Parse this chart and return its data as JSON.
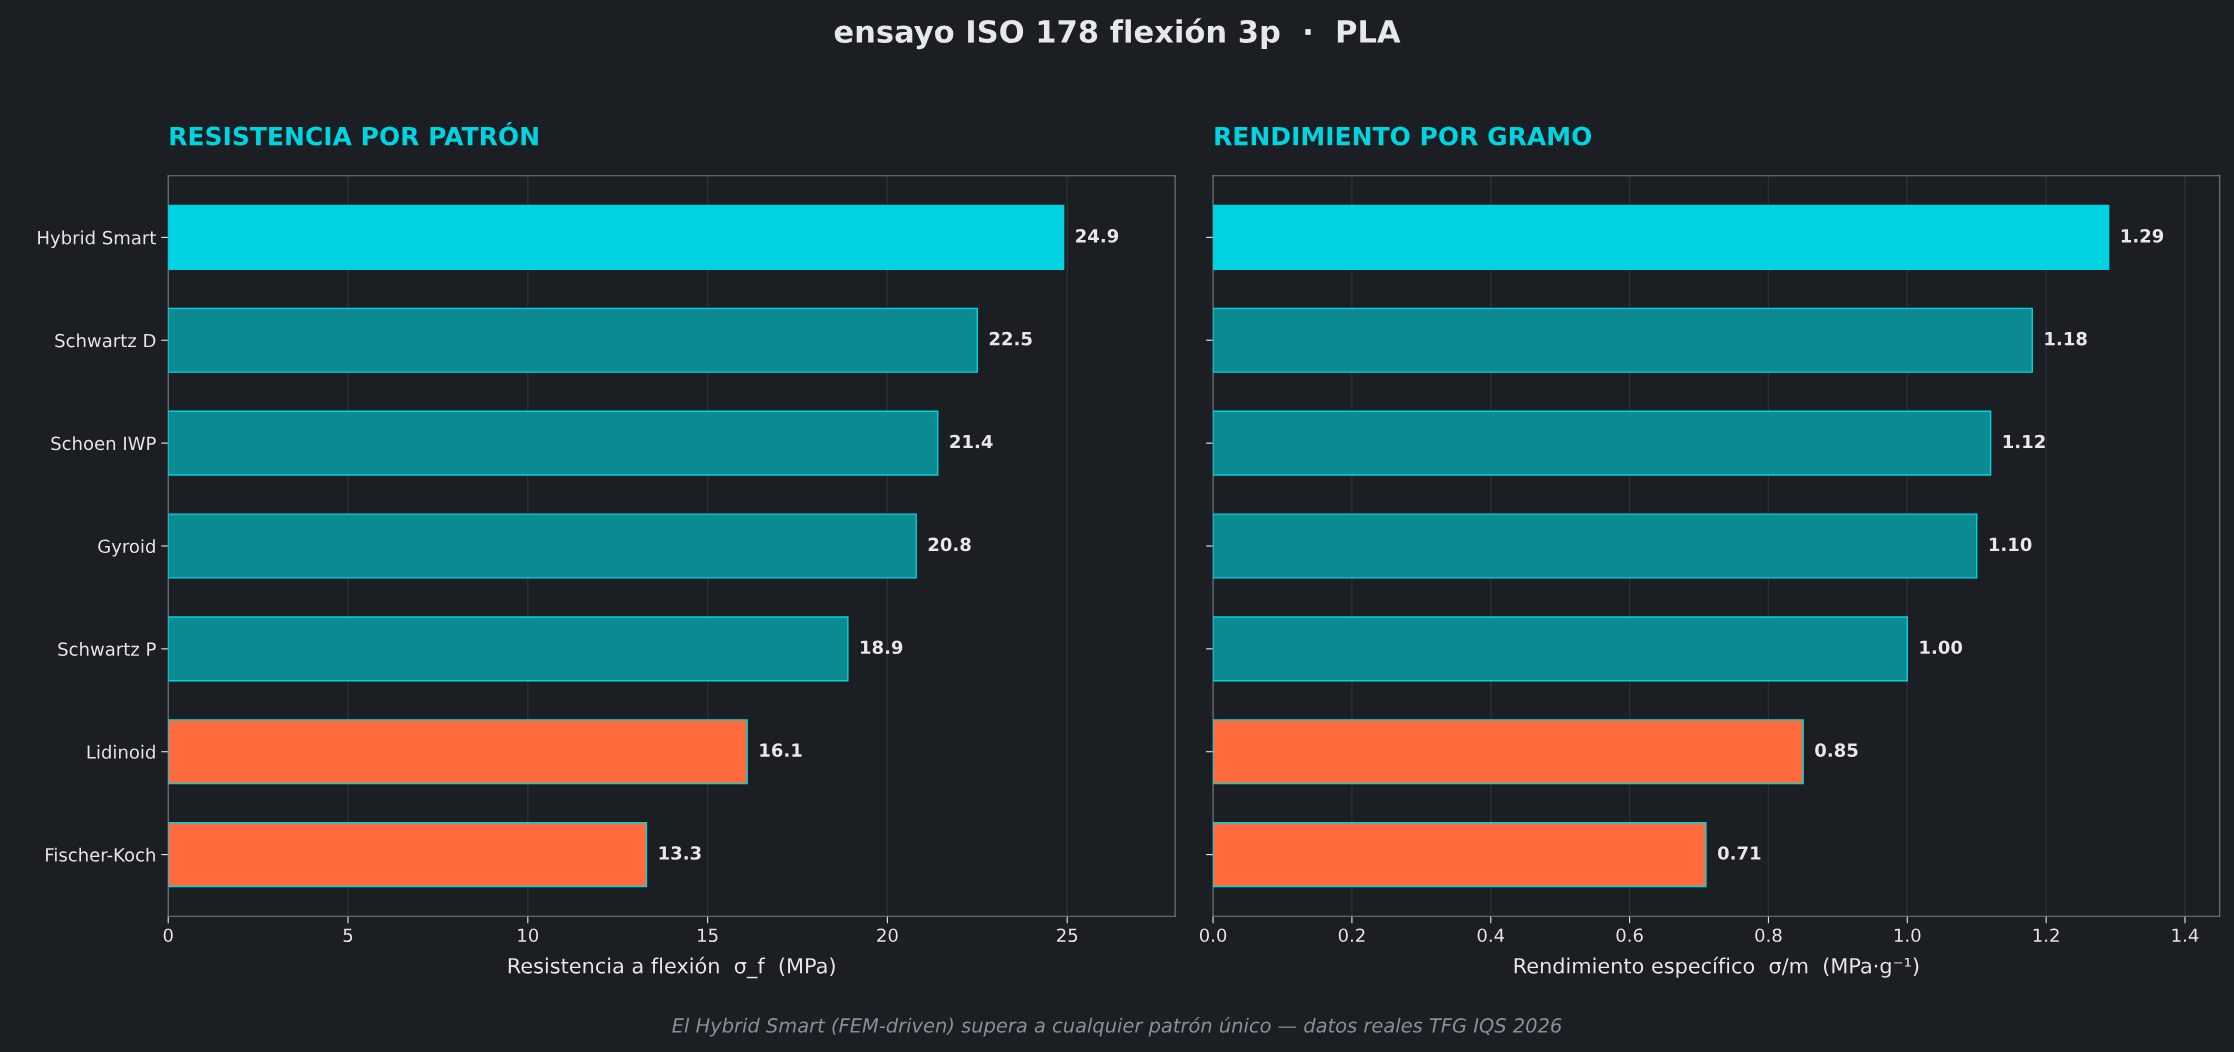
{
  "chart_data": [
    {
      "type": "bar",
      "orientation": "horizontal",
      "title": "RESISTENCIA POR PATRÓN",
      "xlabel": "Resistencia a flexión  σ_f  (MPa)",
      "categories": [
        "Hybrid Smart",
        "Schwartz D",
        "Schoen IWP",
        "Gyroid",
        "Schwartz P",
        "Lidinoid",
        "Fischer-Koch"
      ],
      "values": [
        24.9,
        22.5,
        21.4,
        20.8,
        18.9,
        16.1,
        13.3
      ],
      "colors": [
        "#00d4e0",
        "#0b8a92",
        "#0b8a92",
        "#0b8a92",
        "#0b8a92",
        "#ff6b3d",
        "#ff6b3d"
      ],
      "xlim": [
        0,
        28
      ],
      "xticks": [
        0,
        5,
        10,
        15,
        20,
        25
      ],
      "grid": "x",
      "data_labels": true,
      "annotations": [
        "ensayo ISO 178 flexión 3p  ·  PLA",
        "El Hybrid Smart (FEM-driven) supera a cualquier patrón único — datos reales TFG IQS 2026"
      ]
    },
    {
      "type": "bar",
      "orientation": "horizontal",
      "title": "RENDIMIENTO POR GRAMO",
      "xlabel": "Rendimiento específico  σ/m  (MPa·g⁻¹)",
      "categories": [
        null,
        null,
        null,
        null,
        null,
        null,
        null
      ],
      "values": [
        1.29,
        1.18,
        1.12,
        1.1,
        1.0,
        0.85,
        0.71
      ],
      "value_labels": [
        "1.29",
        "1.18",
        "1.12",
        "1.10",
        "1.00",
        "0.85",
        "0.71"
      ],
      "colors": [
        "#00d4e0",
        "#0b8a92",
        "#0b8a92",
        "#0b8a92",
        "#0b8a92",
        "#ff6b3d",
        "#ff6b3d"
      ],
      "xlim": [
        0,
        1.45
      ],
      "xticks": [
        {
          "value": 0,
          "label": "0.0"
        },
        0.2,
        0.4,
        0.6,
        0.8,
        {
          "value": 1,
          "label": "1.0"
        },
        1.2,
        1.4
      ],
      "grid": "x"
    }
  ]
}
